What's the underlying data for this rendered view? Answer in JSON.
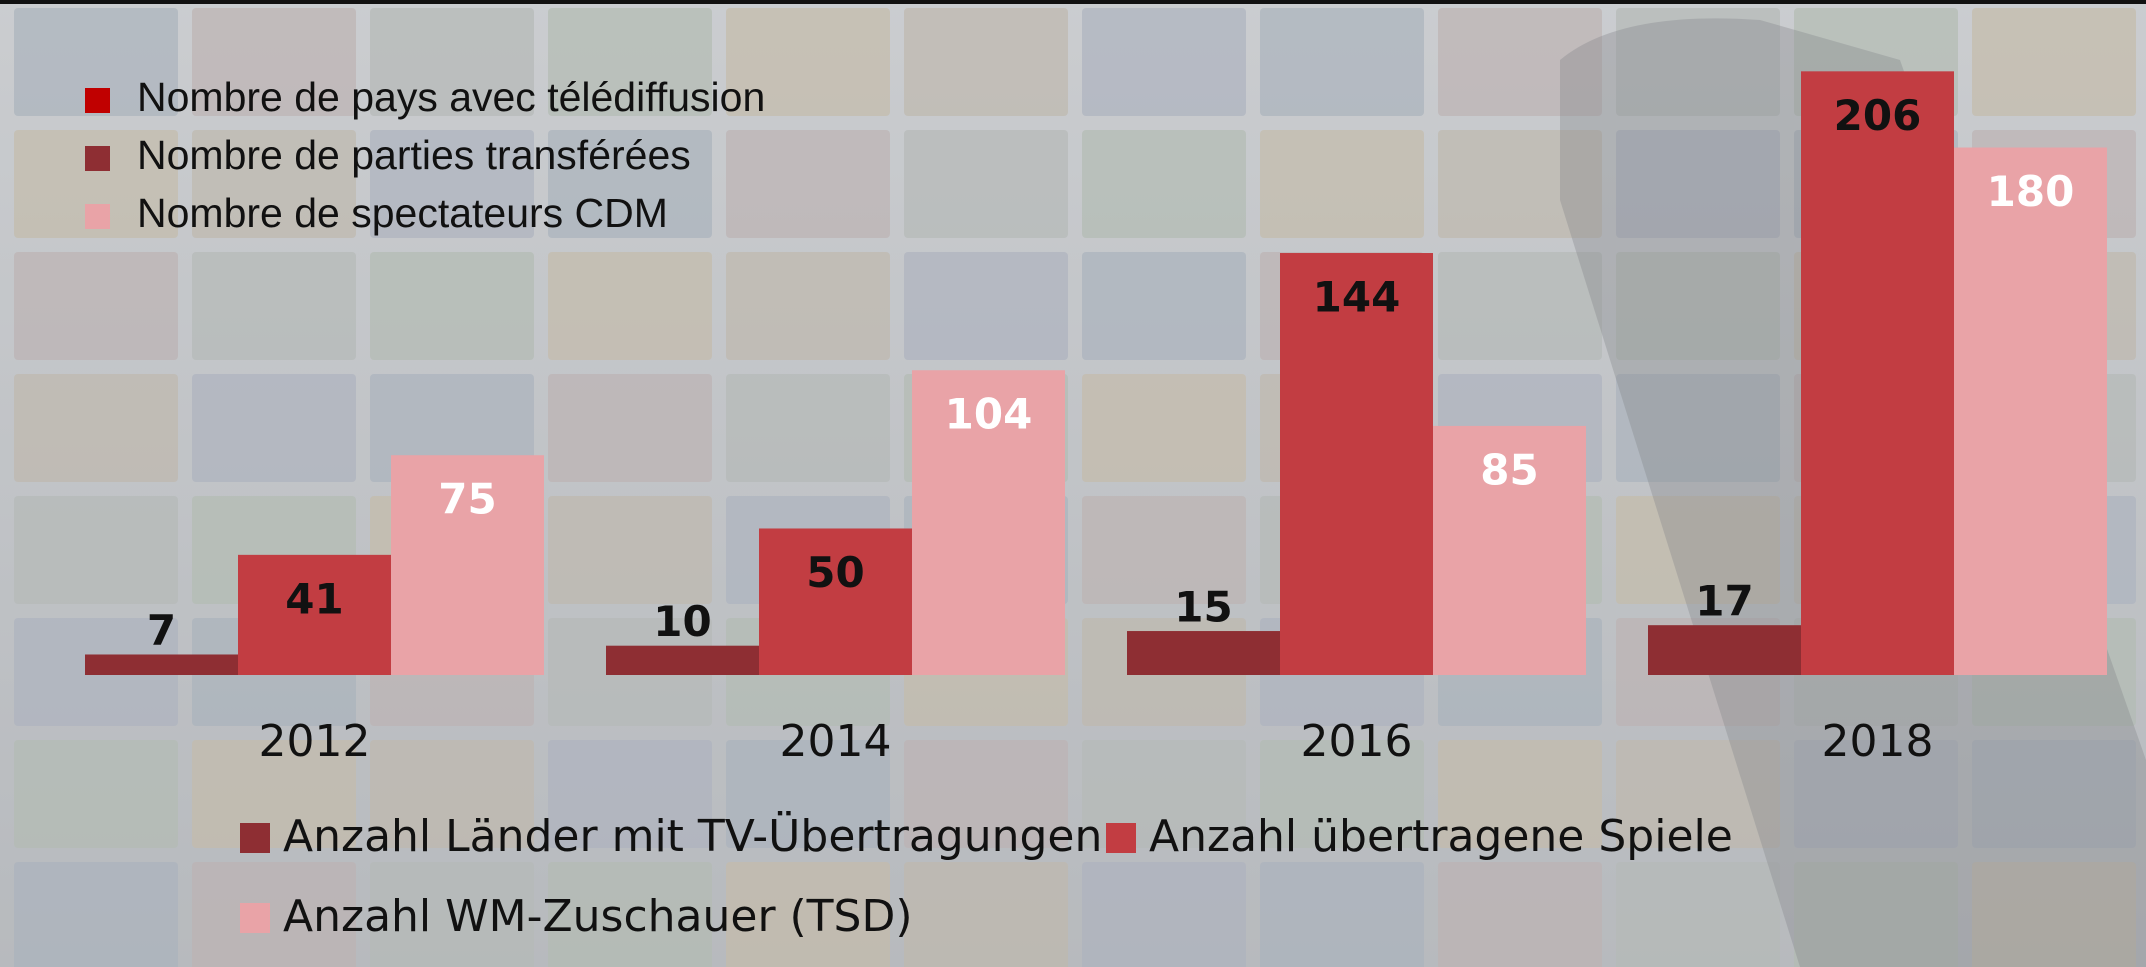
{
  "chart_data": {
    "type": "bar",
    "categories": [
      "2012",
      "2014",
      "2016",
      "2018"
    ],
    "series": [
      {
        "name": "Anzahl Länder mit TV-Übertragungen",
        "color": "#8e2e33",
        "values": [
          7,
          10,
          15,
          17
        ]
      },
      {
        "name": "Anzahl übertragene Spiele",
        "color": "#c23d42",
        "values": [
          41,
          50,
          144,
          206
        ]
      },
      {
        "name": "Anzahl WM-Zuschauer (TSD)",
        "color": "#e9a3a7",
        "values": [
          75,
          104,
          85,
          180
        ]
      }
    ],
    "secondary_legend": [
      {
        "name": "Nombre de pays avec télédiffusion",
        "color": "#c00000"
      },
      {
        "name": "Nombre de parties transférées",
        "color": "#8e2e33"
      },
      {
        "name": "Nombre de spectateurs CDM",
        "color": "#e9a3a7"
      }
    ],
    "ylim": [
      0,
      230
    ]
  }
}
